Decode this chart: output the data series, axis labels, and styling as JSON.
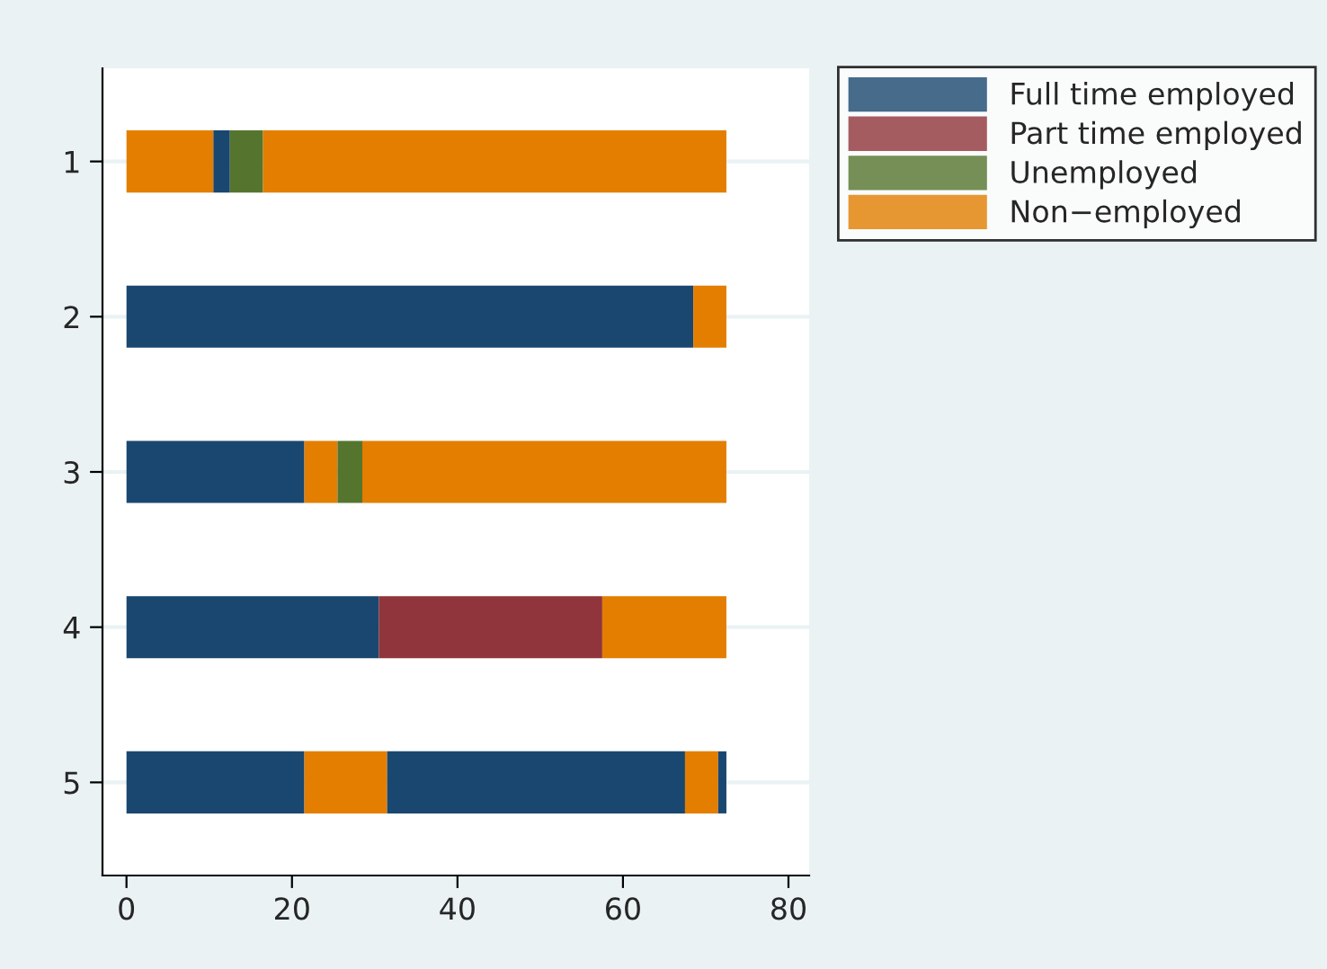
{
  "chart_data": {
    "type": "bar",
    "orientation": "horizontal",
    "stacked": true,
    "categories": [
      "1",
      "2",
      "3",
      "4",
      "5"
    ],
    "series": [
      {
        "values": [
          10.5,
          68.5,
          21.5,
          30.5,
          21.5
        ],
        "colors": [
          "#e37e00",
          "#1a476f",
          "#1a476f",
          "#1a476f",
          "#1a476f"
        ]
      },
      {
        "values": [
          2,
          4,
          4,
          27,
          10
        ],
        "colors": [
          "#1a476f",
          "#e37e00",
          "#e37e00",
          "#90353b",
          "#e37e00"
        ]
      },
      {
        "values": [
          4,
          null,
          3,
          15,
          36
        ],
        "colors": [
          "#55752f",
          null,
          "#55752f",
          "#e37e00",
          "#1a476f"
        ]
      },
      {
        "values": [
          56,
          null,
          44,
          null,
          4
        ],
        "colors": [
          "#e37e00",
          null,
          "#e37e00",
          null,
          "#e37e00"
        ]
      },
      {
        "values": [
          null,
          null,
          null,
          null,
          1
        ],
        "colors": [
          null,
          null,
          null,
          null,
          "#1a476f"
        ]
      },
      {
        "name": "Full time employed",
        "color": "#1a476f",
        "values": [
          null,
          null,
          null,
          null,
          null
        ]
      },
      {
        "name": "Part time employed",
        "color": "#90353b",
        "values": [
          null,
          null,
          null,
          null,
          null
        ]
      },
      {
        "name": "Unemployed",
        "color": "#55752f",
        "values": [
          null,
          null,
          null,
          null,
          null
        ]
      },
      {
        "name": "Non−employed",
        "color": "#e37e00",
        "values": [
          null,
          null,
          null,
          null,
          null
        ]
      }
    ],
    "xlim": [
      -2.9,
      82.5
    ],
    "xticks": [
      0,
      20,
      40,
      60,
      80
    ],
    "grid": "y",
    "legend": "top right"
  }
}
